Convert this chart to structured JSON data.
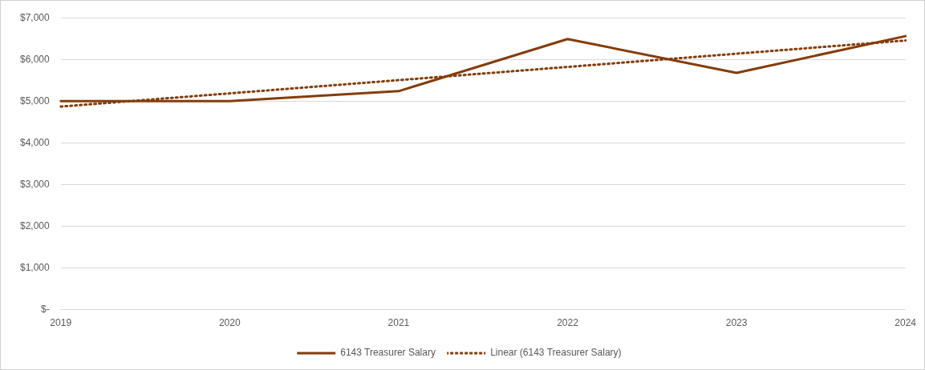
{
  "chart_data": {
    "type": "line",
    "categories": [
      "2019",
      "2020",
      "2021",
      "2022",
      "2023",
      "2024"
    ],
    "series": [
      {
        "name": "6143 Treasurer Salary",
        "color": "#843c0c",
        "values": [
          5000,
          5000,
          5240,
          6490,
          5680,
          6560
        ],
        "line_style": "solid"
      },
      {
        "name": "Linear (6143 Treasurer Salary)",
        "color": "#843c0c",
        "values": [
          4870,
          5187,
          5504,
          5821,
          6138,
          6455
        ],
        "line_style": "dotted"
      }
    ],
    "ylim": [
      0,
      7000
    ],
    "yticks": [
      {
        "value": 0,
        "label": "$-"
      },
      {
        "value": 1000,
        "label": "$1,000"
      },
      {
        "value": 2000,
        "label": "$2,000"
      },
      {
        "value": 3000,
        "label": "$3,000"
      },
      {
        "value": 4000,
        "label": "$4,000"
      },
      {
        "value": 5000,
        "label": "$5,000"
      },
      {
        "value": 6000,
        "label": "$6,000"
      },
      {
        "value": 7000,
        "label": "$7,000"
      }
    ],
    "grid": "y",
    "legend": "bottom",
    "marker": "none"
  }
}
